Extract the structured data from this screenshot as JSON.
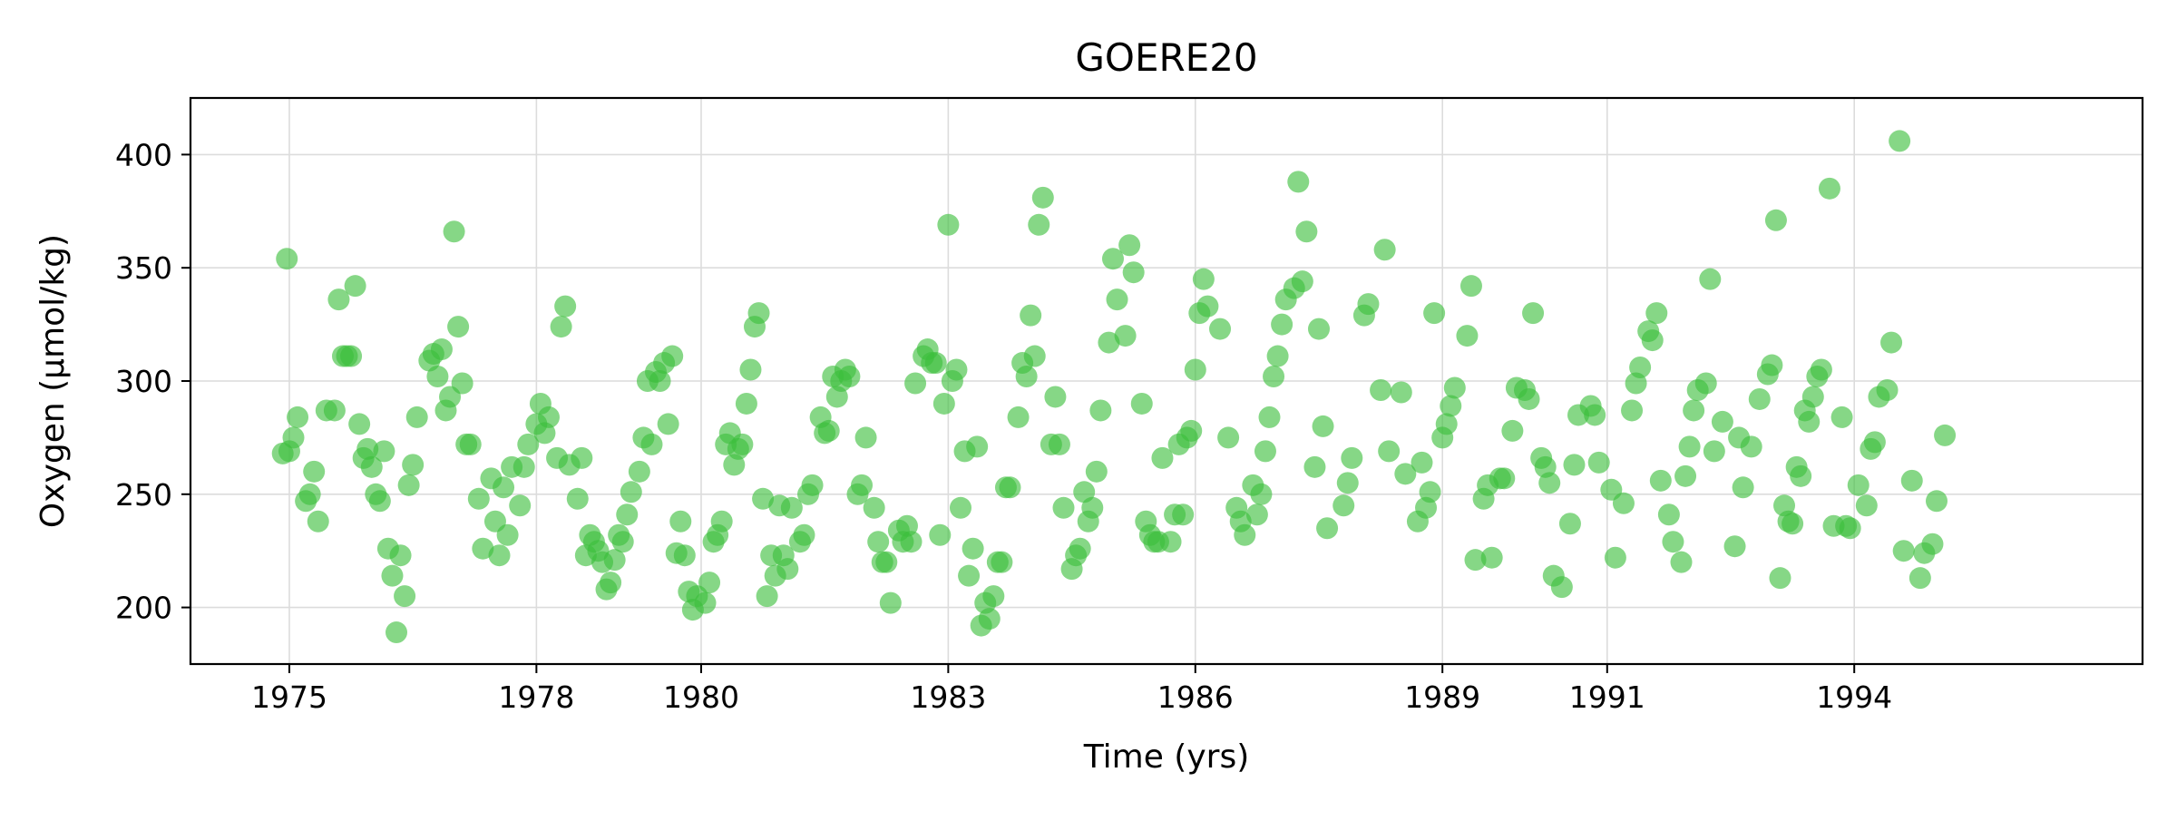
{
  "chart_data": {
    "type": "scatter",
    "title": "GOERE20",
    "xlabel": "Time (yrs)",
    "ylabel": "Oxygen (µmol/kg)",
    "x_tick_labels": [
      "1975",
      "1978",
      "1980",
      "1983",
      "1986",
      "1989",
      "1991",
      "1994"
    ],
    "x_tick_values": [
      1975.0,
      1978.0,
      1980.0,
      1983.0,
      1986.0,
      1989.0,
      1991.0,
      1994.0
    ],
    "y_ticks": [
      200,
      250,
      300,
      350,
      400
    ],
    "xlim": [
      1973.8,
      1997.5
    ],
    "ylim": [
      175,
      425
    ],
    "grid": true,
    "marker_color": "#3cbf3c",
    "points": [
      [
        1974.92,
        268
      ],
      [
        1974.97,
        354
      ],
      [
        1975.0,
        269
      ],
      [
        1975.05,
        275
      ],
      [
        1975.1,
        284
      ],
      [
        1975.2,
        247
      ],
      [
        1975.25,
        250
      ],
      [
        1975.3,
        260
      ],
      [
        1975.35,
        238
      ],
      [
        1975.45,
        287
      ],
      [
        1975.55,
        287
      ],
      [
        1975.6,
        336
      ],
      [
        1975.65,
        311
      ],
      [
        1975.7,
        311
      ],
      [
        1975.75,
        311
      ],
      [
        1975.8,
        342
      ],
      [
        1975.85,
        281
      ],
      [
        1975.9,
        266
      ],
      [
        1975.95,
        270
      ],
      [
        1976.0,
        262
      ],
      [
        1976.05,
        250
      ],
      [
        1976.1,
        247
      ],
      [
        1976.15,
        269
      ],
      [
        1976.2,
        226
      ],
      [
        1976.25,
        214
      ],
      [
        1976.3,
        189
      ],
      [
        1976.35,
        223
      ],
      [
        1976.4,
        205
      ],
      [
        1976.45,
        254
      ],
      [
        1976.5,
        263
      ],
      [
        1976.55,
        284
      ],
      [
        1976.7,
        309
      ],
      [
        1976.75,
        312
      ],
      [
        1976.8,
        302
      ],
      [
        1976.85,
        314
      ],
      [
        1976.9,
        287
      ],
      [
        1976.95,
        293
      ],
      [
        1977.0,
        366
      ],
      [
        1977.05,
        324
      ],
      [
        1977.1,
        299
      ],
      [
        1977.15,
        272
      ],
      [
        1977.2,
        272
      ],
      [
        1977.3,
        248
      ],
      [
        1977.35,
        226
      ],
      [
        1977.45,
        257
      ],
      [
        1977.5,
        238
      ],
      [
        1977.55,
        223
      ],
      [
        1977.6,
        253
      ],
      [
        1977.65,
        232
      ],
      [
        1977.7,
        262
      ],
      [
        1977.8,
        245
      ],
      [
        1977.85,
        262
      ],
      [
        1977.9,
        272
      ],
      [
        1978.0,
        281
      ],
      [
        1978.05,
        290
      ],
      [
        1978.1,
        277
      ],
      [
        1978.15,
        284
      ],
      [
        1978.25,
        266
      ],
      [
        1978.3,
        324
      ],
      [
        1978.35,
        333
      ],
      [
        1978.4,
        263
      ],
      [
        1978.5,
        248
      ],
      [
        1978.55,
        266
      ],
      [
        1978.6,
        223
      ],
      [
        1978.65,
        232
      ],
      [
        1978.7,
        229
      ],
      [
        1978.75,
        225
      ],
      [
        1978.8,
        220
      ],
      [
        1978.85,
        208
      ],
      [
        1978.9,
        211
      ],
      [
        1978.95,
        221
      ],
      [
        1979.0,
        232
      ],
      [
        1979.05,
        229
      ],
      [
        1979.1,
        241
      ],
      [
        1979.15,
        251
      ],
      [
        1979.25,
        260
      ],
      [
        1979.3,
        275
      ],
      [
        1979.35,
        300
      ],
      [
        1979.4,
        272
      ],
      [
        1979.45,
        304
      ],
      [
        1979.5,
        300
      ],
      [
        1979.55,
        308
      ],
      [
        1979.6,
        281
      ],
      [
        1979.65,
        311
      ],
      [
        1979.7,
        224
      ],
      [
        1979.75,
        238
      ],
      [
        1979.8,
        223
      ],
      [
        1979.85,
        207
      ],
      [
        1979.9,
        199
      ],
      [
        1979.95,
        205
      ],
      [
        1980.05,
        202
      ],
      [
        1980.1,
        211
      ],
      [
        1980.15,
        229
      ],
      [
        1980.2,
        232
      ],
      [
        1980.25,
        238
      ],
      [
        1980.3,
        272
      ],
      [
        1980.35,
        277
      ],
      [
        1980.4,
        263
      ],
      [
        1980.45,
        270
      ],
      [
        1980.5,
        272
      ],
      [
        1980.55,
        290
      ],
      [
        1980.6,
        305
      ],
      [
        1980.65,
        324
      ],
      [
        1980.7,
        330
      ],
      [
        1980.75,
        248
      ],
      [
        1980.8,
        205
      ],
      [
        1980.85,
        223
      ],
      [
        1980.9,
        214
      ],
      [
        1980.95,
        245
      ],
      [
        1981.0,
        223
      ],
      [
        1981.05,
        217
      ],
      [
        1981.1,
        244
      ],
      [
        1981.2,
        229
      ],
      [
        1981.25,
        232
      ],
      [
        1981.3,
        250
      ],
      [
        1981.35,
        254
      ],
      [
        1981.45,
        284
      ],
      [
        1981.5,
        277
      ],
      [
        1981.55,
        278
      ],
      [
        1981.6,
        302
      ],
      [
        1981.65,
        293
      ],
      [
        1981.7,
        300
      ],
      [
        1981.75,
        305
      ],
      [
        1981.8,
        302
      ],
      [
        1981.9,
        250
      ],
      [
        1981.95,
        254
      ],
      [
        1982.0,
        275
      ],
      [
        1982.1,
        244
      ],
      [
        1982.15,
        229
      ],
      [
        1982.2,
        220
      ],
      [
        1982.25,
        220
      ],
      [
        1982.3,
        202
      ],
      [
        1982.4,
        234
      ],
      [
        1982.45,
        229
      ],
      [
        1982.5,
        236
      ],
      [
        1982.55,
        229
      ],
      [
        1982.6,
        299
      ],
      [
        1982.7,
        311
      ],
      [
        1982.75,
        314
      ],
      [
        1982.8,
        308
      ],
      [
        1982.85,
        308
      ],
      [
        1982.9,
        232
      ],
      [
        1982.95,
        290
      ],
      [
        1983.0,
        369
      ],
      [
        1983.05,
        300
      ],
      [
        1983.1,
        305
      ],
      [
        1983.15,
        244
      ],
      [
        1983.2,
        269
      ],
      [
        1983.25,
        214
      ],
      [
        1983.3,
        226
      ],
      [
        1983.35,
        271
      ],
      [
        1983.4,
        192
      ],
      [
        1983.45,
        202
      ],
      [
        1983.5,
        195
      ],
      [
        1983.55,
        205
      ],
      [
        1983.6,
        220
      ],
      [
        1983.65,
        220
      ],
      [
        1983.7,
        253
      ],
      [
        1983.75,
        253
      ],
      [
        1983.85,
        284
      ],
      [
        1983.9,
        308
      ],
      [
        1983.95,
        302
      ],
      [
        1984.0,
        329
      ],
      [
        1984.05,
        311
      ],
      [
        1984.1,
        369
      ],
      [
        1984.15,
        381
      ],
      [
        1984.25,
        272
      ],
      [
        1984.3,
        293
      ],
      [
        1984.35,
        272
      ],
      [
        1984.4,
        244
      ],
      [
        1984.5,
        217
      ],
      [
        1984.55,
        223
      ],
      [
        1984.6,
        226
      ],
      [
        1984.65,
        251
      ],
      [
        1984.7,
        238
      ],
      [
        1984.75,
        244
      ],
      [
        1984.8,
        260
      ],
      [
        1984.85,
        287
      ],
      [
        1984.95,
        317
      ],
      [
        1985.0,
        354
      ],
      [
        1985.05,
        336
      ],
      [
        1985.15,
        320
      ],
      [
        1985.2,
        360
      ],
      [
        1985.25,
        348
      ],
      [
        1985.35,
        290
      ],
      [
        1985.4,
        238
      ],
      [
        1985.45,
        232
      ],
      [
        1985.5,
        229
      ],
      [
        1985.55,
        229
      ],
      [
        1985.6,
        266
      ],
      [
        1985.7,
        229
      ],
      [
        1985.75,
        241
      ],
      [
        1985.8,
        272
      ],
      [
        1985.85,
        241
      ],
      [
        1985.9,
        275
      ],
      [
        1985.95,
        278
      ],
      [
        1986.0,
        305
      ],
      [
        1986.05,
        330
      ],
      [
        1986.1,
        345
      ],
      [
        1986.15,
        333
      ],
      [
        1986.3,
        323
      ],
      [
        1986.4,
        275
      ],
      [
        1986.5,
        244
      ],
      [
        1986.55,
        238
      ],
      [
        1986.6,
        232
      ],
      [
        1986.7,
        254
      ],
      [
        1986.75,
        241
      ],
      [
        1986.8,
        250
      ],
      [
        1986.85,
        269
      ],
      [
        1986.9,
        284
      ],
      [
        1986.95,
        302
      ],
      [
        1987.0,
        311
      ],
      [
        1987.05,
        325
      ],
      [
        1987.1,
        336
      ],
      [
        1987.2,
        341
      ],
      [
        1987.25,
        388
      ],
      [
        1987.3,
        344
      ],
      [
        1987.35,
        366
      ],
      [
        1987.45,
        262
      ],
      [
        1987.5,
        323
      ],
      [
        1987.55,
        280
      ],
      [
        1987.6,
        235
      ],
      [
        1987.8,
        245
      ],
      [
        1987.85,
        255
      ],
      [
        1987.9,
        266
      ],
      [
        1988.05,
        329
      ],
      [
        1988.1,
        334
      ],
      [
        1988.25,
        296
      ],
      [
        1988.3,
        358
      ],
      [
        1988.35,
        269
      ],
      [
        1988.5,
        295
      ],
      [
        1988.55,
        259
      ],
      [
        1988.7,
        238
      ],
      [
        1988.75,
        264
      ],
      [
        1988.8,
        244
      ],
      [
        1988.85,
        251
      ],
      [
        1988.9,
        330
      ],
      [
        1989.0,
        275
      ],
      [
        1989.05,
        281
      ],
      [
        1989.1,
        289
      ],
      [
        1989.15,
        297
      ],
      [
        1989.3,
        320
      ],
      [
        1989.35,
        342
      ],
      [
        1989.4,
        221
      ],
      [
        1989.5,
        248
      ],
      [
        1989.55,
        254
      ],
      [
        1989.6,
        222
      ],
      [
        1989.7,
        257
      ],
      [
        1989.75,
        257
      ],
      [
        1989.85,
        278
      ],
      [
        1989.9,
        297
      ],
      [
        1990.0,
        296
      ],
      [
        1990.05,
        292
      ],
      [
        1990.1,
        330
      ],
      [
        1990.2,
        266
      ],
      [
        1990.25,
        262
      ],
      [
        1990.3,
        255
      ],
      [
        1990.35,
        214
      ],
      [
        1990.45,
        209
      ],
      [
        1990.55,
        237
      ],
      [
        1990.6,
        263
      ],
      [
        1990.65,
        285
      ],
      [
        1990.8,
        289
      ],
      [
        1990.85,
        285
      ],
      [
        1990.9,
        264
      ],
      [
        1991.05,
        252
      ],
      [
        1991.1,
        222
      ],
      [
        1991.2,
        246
      ],
      [
        1991.3,
        287
      ],
      [
        1991.35,
        299
      ],
      [
        1991.4,
        306
      ],
      [
        1991.5,
        322
      ],
      [
        1991.55,
        318
      ],
      [
        1991.6,
        330
      ],
      [
        1991.65,
        256
      ],
      [
        1991.75,
        241
      ],
      [
        1991.8,
        229
      ],
      [
        1991.9,
        220
      ],
      [
        1991.95,
        258
      ],
      [
        1992.0,
        271
      ],
      [
        1992.05,
        287
      ],
      [
        1992.1,
        296
      ],
      [
        1992.2,
        299
      ],
      [
        1992.25,
        345
      ],
      [
        1992.3,
        269
      ],
      [
        1992.4,
        282
      ],
      [
        1992.55,
        227
      ],
      [
        1992.6,
        275
      ],
      [
        1992.65,
        253
      ],
      [
        1992.75,
        271
      ],
      [
        1992.85,
        292
      ],
      [
        1992.95,
        303
      ],
      [
        1993.0,
        307
      ],
      [
        1993.05,
        371
      ],
      [
        1993.1,
        213
      ],
      [
        1993.15,
        245
      ],
      [
        1993.2,
        238
      ],
      [
        1993.25,
        237
      ],
      [
        1993.3,
        262
      ],
      [
        1993.35,
        258
      ],
      [
        1993.4,
        287
      ],
      [
        1993.45,
        282
      ],
      [
        1993.5,
        293
      ],
      [
        1993.55,
        302
      ],
      [
        1993.6,
        305
      ],
      [
        1993.7,
        385
      ],
      [
        1993.75,
        236
      ],
      [
        1993.85,
        284
      ],
      [
        1993.9,
        236
      ],
      [
        1993.95,
        235
      ],
      [
        1994.05,
        254
      ],
      [
        1994.15,
        245
      ],
      [
        1994.2,
        270
      ],
      [
        1994.25,
        273
      ],
      [
        1994.3,
        293
      ],
      [
        1994.4,
        296
      ],
      [
        1994.45,
        317
      ],
      [
        1994.55,
        406
      ],
      [
        1994.6,
        225
      ],
      [
        1994.7,
        256
      ],
      [
        1994.8,
        213
      ],
      [
        1994.85,
        224
      ],
      [
        1994.95,
        228
      ],
      [
        1995.0,
        247
      ],
      [
        1995.1,
        276
      ]
    ]
  }
}
